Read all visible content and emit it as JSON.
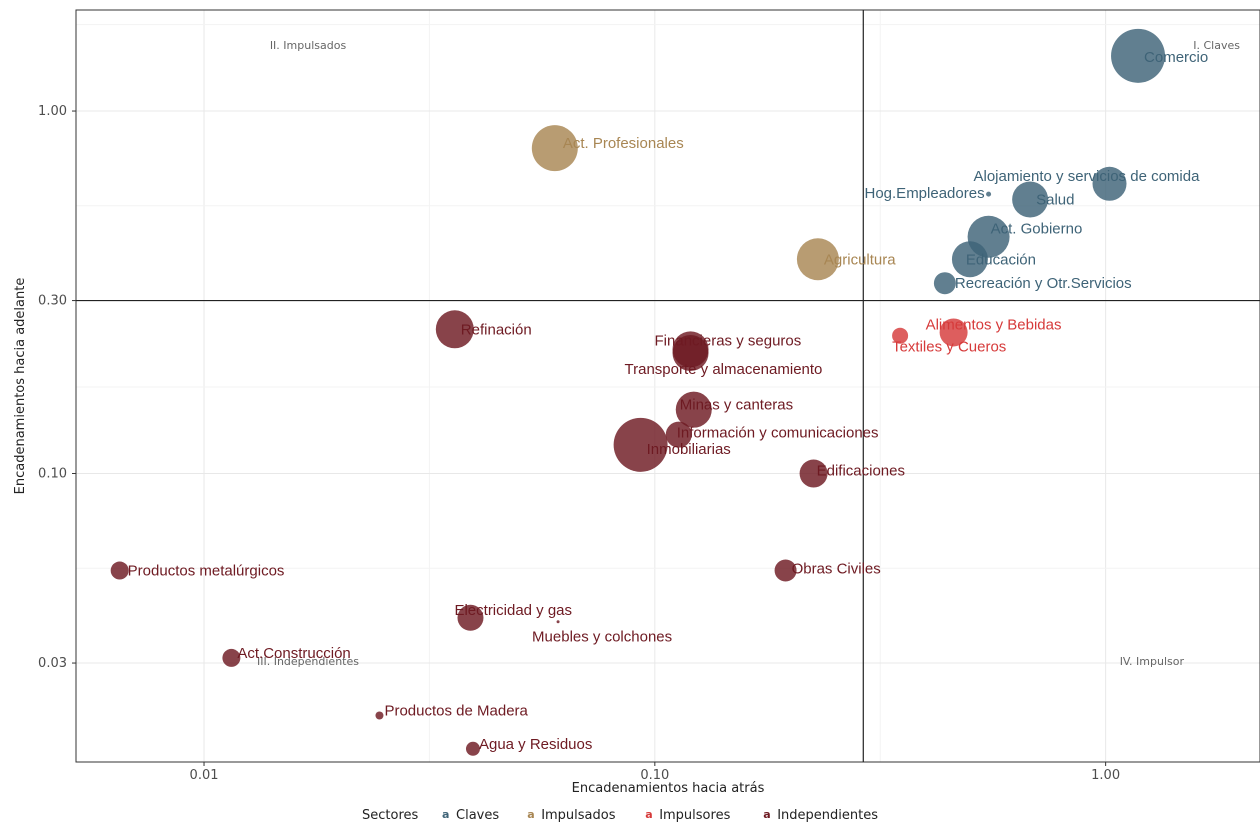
{
  "chart_data": {
    "type": "scatter",
    "title": "",
    "xlabel": "Encadenamientos hacia atrás",
    "ylabel": "Encadenamientos hacia adelante",
    "x_scale": "log",
    "y_scale": "log",
    "xlim": [
      0.0052,
      2.2
    ],
    "ylim": [
      0.016,
      1.9
    ],
    "x_ticks": [
      {
        "value": 0.01,
        "label": "0.01"
      },
      {
        "value": 0.1,
        "label": "0.10"
      },
      {
        "value": 1.0,
        "label": "1.00"
      }
    ],
    "y_ticks": [
      {
        "value": 0.03,
        "label": "0.03"
      },
      {
        "value": 0.1,
        "label": "0.10"
      },
      {
        "value": 0.3,
        "label": "0.30"
      },
      {
        "value": 1.0,
        "label": "1.00"
      }
    ],
    "reference_lines": {
      "x": 0.29,
      "y": 0.3
    },
    "grid": true,
    "quadrant_labels": [
      {
        "text": "II. Impulsados",
        "position": "top-left"
      },
      {
        "text": "I. Claves",
        "position": "top-right"
      },
      {
        "text": "III. Independientes",
        "position": "bottom-left"
      },
      {
        "text": "IV. Impulsor",
        "position": "bottom-right"
      }
    ],
    "legend": {
      "title": "Sectores",
      "position": "bottom",
      "key_glyph": "a",
      "entries": [
        {
          "name": "Claves",
          "color": "#3e6377"
        },
        {
          "name": "Impulsados",
          "color": "#a88653"
        },
        {
          "name": "Impulsores",
          "color": "#d63a3a"
        },
        {
          "name": "Independientes",
          "color": "#6e1a22"
        }
      ]
    },
    "series": [
      {
        "name": "Claves",
        "color": "#3e6377",
        "points": [
          {
            "label": "Comercio",
            "x": 1.18,
            "y": 1.42,
            "size": 27
          },
          {
            "label": "Alojamiento y servicios de comida",
            "x": 1.02,
            "y": 0.63,
            "size": 17
          },
          {
            "label": "Hog.Empleadores",
            "x": 0.55,
            "y": 0.59,
            "size": 2.5
          },
          {
            "label": "Salud",
            "x": 0.68,
            "y": 0.57,
            "size": 18
          },
          {
            "label": "Act. Gobierno",
            "x": 0.55,
            "y": 0.45,
            "size": 21
          },
          {
            "label": "Educación",
            "x": 0.5,
            "y": 0.39,
            "size": 18
          },
          {
            "label": "Recreación y Otr.Servicios",
            "x": 0.44,
            "y": 0.335,
            "size": 11
          }
        ]
      },
      {
        "name": "Impulsados",
        "color": "#a88653",
        "points": [
          {
            "label": "Act. Profesionales",
            "x": 0.06,
            "y": 0.79,
            "size": 23
          },
          {
            "label": "Agricultura",
            "x": 0.23,
            "y": 0.39,
            "size": 21
          }
        ]
      },
      {
        "name": "Impulsores",
        "color": "#d63a3a",
        "points": [
          {
            "label": "Alimentos y Bebidas",
            "x": 0.46,
            "y": 0.245,
            "size": 14
          },
          {
            "label": "Textiles y Cueros",
            "x": 0.35,
            "y": 0.24,
            "size": 8
          }
        ]
      },
      {
        "name": "Independientes",
        "color": "#6e1a22",
        "points": [
          {
            "label": "Refinación",
            "x": 0.036,
            "y": 0.25,
            "size": 19
          },
          {
            "label": "Financieras y seguros",
            "x": 0.12,
            "y": 0.22,
            "size": 18
          },
          {
            "label": "Transporte y almacenamiento",
            "x": 0.12,
            "y": 0.215,
            "size": 18
          },
          {
            "label": "Minas y canteras",
            "x": 0.122,
            "y": 0.15,
            "size": 18
          },
          {
            "label": "Información y comunicaciones",
            "x": 0.113,
            "y": 0.128,
            "size": 13
          },
          {
            "label": "Inmobiliarias",
            "x": 0.093,
            "y": 0.12,
            "size": 27
          },
          {
            "label": "Edificaciones",
            "x": 0.225,
            "y": 0.1,
            "size": 14
          },
          {
            "label": "Obras Civiles",
            "x": 0.195,
            "y": 0.054,
            "size": 11
          },
          {
            "label": "Productos metalúrgicos",
            "x": 0.0065,
            "y": 0.054,
            "size": 9
          },
          {
            "label": "Electricidad y gas",
            "x": 0.039,
            "y": 0.04,
            "size": 13
          },
          {
            "label": "Muebles y colchones",
            "x": 0.061,
            "y": 0.039,
            "size": 1.5
          },
          {
            "label": "Act.Construcción",
            "x": 0.0115,
            "y": 0.031,
            "size": 9
          },
          {
            "label": "Productos de Madera",
            "x": 0.0245,
            "y": 0.0215,
            "size": 4
          },
          {
            "label": "Agua y Residuos",
            "x": 0.0395,
            "y": 0.0174,
            "size": 7
          }
        ]
      }
    ]
  }
}
